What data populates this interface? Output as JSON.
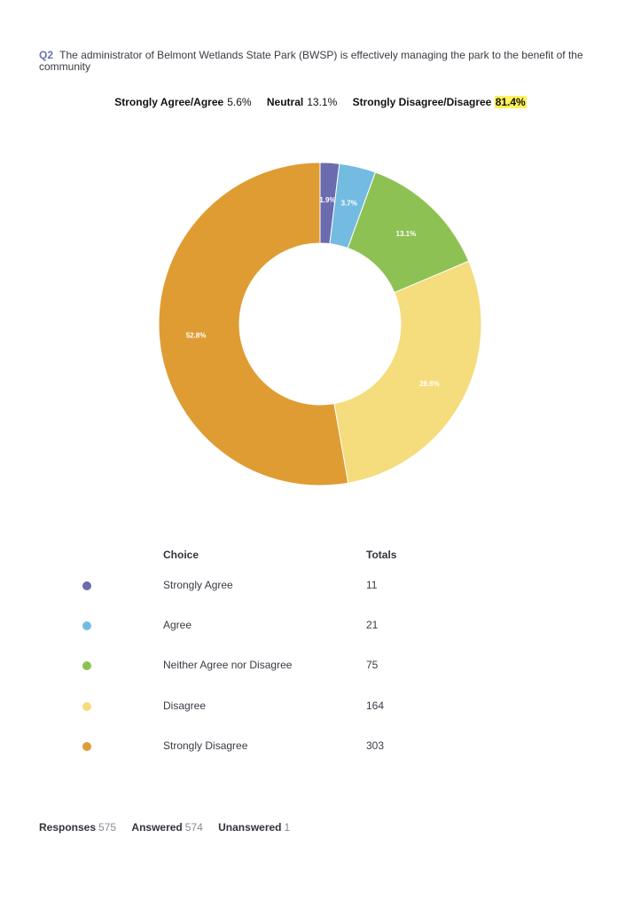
{
  "question": {
    "number": "Q2",
    "text": "The administrator of Belmont Wetlands State Park (BWSP) is effectively managing the park to the benefit of the community"
  },
  "summary": {
    "agree_label": "Strongly Agree/Agree",
    "agree_value": "5.6%",
    "neutral_label": "Neutral",
    "neutral_value": "13.1%",
    "disagree_label": "Strongly Disagree/Disagree",
    "disagree_value": "81.4%",
    "highlight_color": "#fff25a"
  },
  "table": {
    "choice_header": "Choice",
    "totals_header": "Totals",
    "rows": [
      {
        "choice": "Strongly Agree",
        "total": "11",
        "color": "#6b6bb0"
      },
      {
        "choice": "Agree",
        "total": "21",
        "color": "#74bbe2"
      },
      {
        "choice": "Neither Agree nor Disagree",
        "total": "75",
        "color": "#8ec153"
      },
      {
        "choice": "Disagree",
        "total": "164",
        "color": "#f5dc7c"
      },
      {
        "choice": "Strongly Disagree",
        "total": "303",
        "color": "#df9c33"
      }
    ]
  },
  "footer": {
    "responses_label": "Responses",
    "responses_value": "575",
    "answered_label": "Answered",
    "answered_value": "574",
    "unanswered_label": "Unanswered",
    "unanswered_value": "1"
  },
  "chart_data": {
    "type": "pie",
    "donut": true,
    "categories": [
      "Strongly Agree",
      "Agree",
      "Neither Agree nor Disagree",
      "Disagree",
      "Strongly Disagree"
    ],
    "values": [
      11,
      21,
      75,
      164,
      303
    ],
    "labels": [
      "1.9%",
      "3.7%",
      "13.1%",
      "28.6%",
      "52.8%"
    ],
    "colors": [
      "#6b6bb0",
      "#74bbe2",
      "#8ec153",
      "#f5dc7c",
      "#df9c33"
    ]
  }
}
